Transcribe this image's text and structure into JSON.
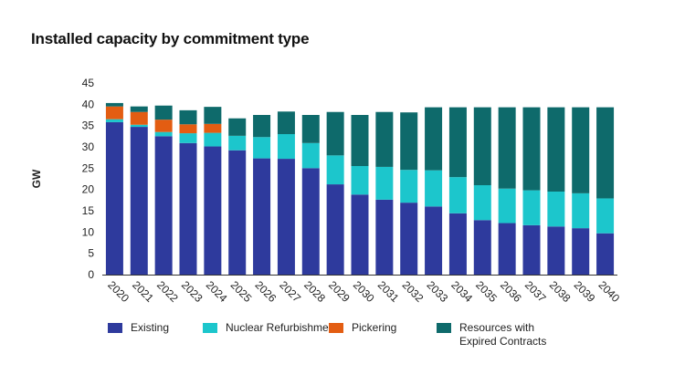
{
  "chart_data": {
    "type": "bar",
    "stacked": true,
    "title": "Installed capacity by commitment type",
    "xlabel": "",
    "ylabel": "GW",
    "ylim": [
      0,
      45
    ],
    "yticks": [
      0,
      5,
      10,
      15,
      20,
      25,
      30,
      35,
      40,
      45
    ],
    "grid": false,
    "legend_position": "bottom",
    "categories": [
      "2020",
      "2021",
      "2022",
      "2023",
      "2024",
      "2025",
      "2026",
      "2027",
      "2028",
      "2029",
      "2030",
      "2031",
      "2032",
      "2033",
      "2034",
      "2035",
      "2036",
      "2037",
      "2038",
      "2039",
      "2040"
    ],
    "series": [
      {
        "name": "Existing",
        "color": "#2e3a9d",
        "values": [
          35.8,
          34.7,
          32.5,
          30.9,
          30.1,
          29.2,
          27.3,
          27.2,
          25.0,
          21.2,
          18.8,
          17.6,
          16.9,
          16.0,
          14.4,
          12.8,
          12.1,
          11.6,
          11.3,
          10.9,
          9.7
        ]
      },
      {
        "name": "Nuclear Refurbishment",
        "color": "#1cc6cc",
        "values": [
          0.7,
          0.5,
          1.0,
          2.3,
          3.2,
          3.4,
          5.0,
          5.8,
          5.9,
          6.8,
          6.7,
          7.7,
          7.7,
          8.5,
          8.5,
          8.2,
          8.1,
          8.2,
          8.2,
          8.2,
          8.2
        ]
      },
      {
        "name": "Pickering",
        "color": "#e35d12",
        "values": [
          3.0,
          3.0,
          2.9,
          2.1,
          2.1,
          0,
          0,
          0,
          0,
          0,
          0,
          0,
          0,
          0,
          0,
          0,
          0,
          0,
          0,
          0,
          0
        ]
      },
      {
        "name": "Resources with\nExpired Contracts",
        "color": "#0e6a6b",
        "values": [
          0.8,
          1.3,
          3.3,
          3.3,
          4.0,
          4.1,
          5.2,
          5.3,
          6.6,
          10.2,
          12.0,
          12.9,
          13.5,
          14.8,
          16.4,
          18.3,
          19.1,
          19.5,
          19.8,
          20.2,
          21.4
        ]
      }
    ]
  }
}
